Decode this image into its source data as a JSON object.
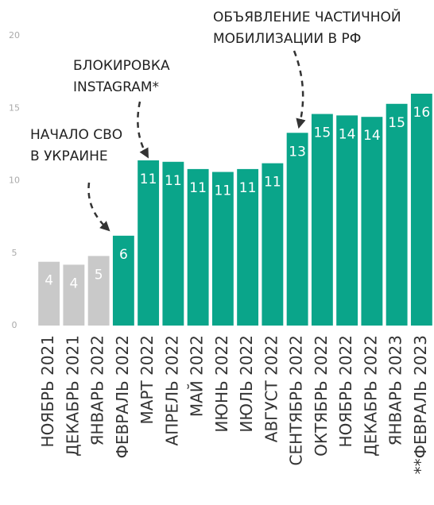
{
  "chart_data": {
    "type": "bar",
    "categories": [
      "НОЯБРЬ 2021",
      "ДЕКАБРЬ 2021",
      "ЯНВАРЬ 2022",
      "ФЕВРАЛЬ 2022",
      "МАРТ 2022",
      "АПРЕЛЬ 2022",
      "МАЙ 2022",
      "ИЮНЬ 2022",
      "ИЮЛЬ 2022",
      "АВГУСТ 2022",
      "СЕНТЯБРЬ 2022",
      "ОКТЯБРЬ 2022",
      "НОЯБРЬ 2022",
      "ДЕКАБРЬ 2022",
      "ЯНВАРЬ 2023",
      "**ФЕВРАЛЬ 2023"
    ],
    "values": [
      4.4,
      4.2,
      4.8,
      6.2,
      11.4,
      11.3,
      10.8,
      10.6,
      10.8,
      11.2,
      13.3,
      14.6,
      14.5,
      14.4,
      15.3,
      16
    ],
    "value_labels": [
      "4",
      "4",
      "5",
      "6",
      "11",
      "11",
      "11",
      "11",
      "11",
      "11",
      "13",
      "15",
      "14",
      "14",
      "15",
      "16"
    ],
    "colors": [
      "#c9c9c9",
      "#c9c9c9",
      "#c9c9c9",
      "#0aa58a",
      "#0aa58a",
      "#0aa58a",
      "#0aa58a",
      "#0aa58a",
      "#0aa58a",
      "#0aa58a",
      "#0aa58a",
      "#0aa58a",
      "#0aa58a",
      "#0aa58a",
      "#0aa58a",
      "#0aa58a"
    ],
    "ylim": [
      0,
      20
    ],
    "yticks": [
      0,
      5,
      10,
      15,
      20
    ],
    "grid": false,
    "annotations": [
      {
        "lines": [
          "НАЧАЛО СВО",
          "В УКРАИНЕ"
        ]
      },
      {
        "lines": [
          "БЛОКИРОВКА",
          "INSTAGRAM*"
        ]
      },
      {
        "lines": [
          "ОБЪЯВЛЕНИЕ ЧАСТИЧНОЙ",
          "МОБИЛИЗАЦИИ В РФ"
        ]
      }
    ]
  }
}
